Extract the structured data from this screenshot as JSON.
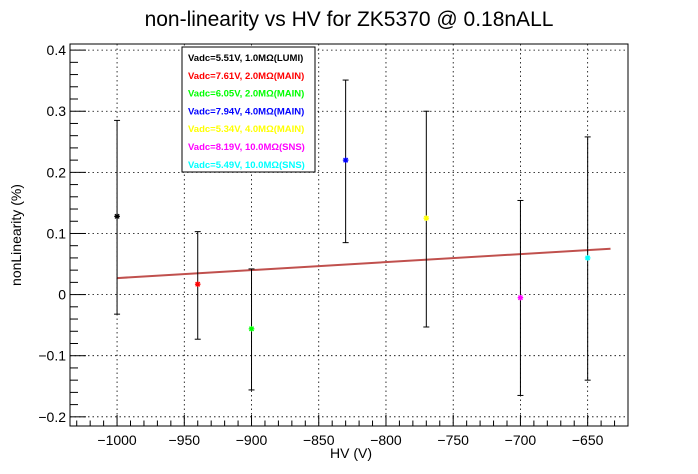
{
  "chart_data": {
    "type": "scatter",
    "title": "non-linearity vs HV for ZK5370 @ 0.18nALL",
    "xlabel": "HV (V)",
    "ylabel": "nonLinearity (%)",
    "xlim": [
      -1035,
      -620
    ],
    "ylim": [
      -0.215,
      0.41
    ],
    "grid": true,
    "legend_position": "top-left",
    "x_ticks": [
      {
        "value": -1000,
        "label": "−1000"
      },
      {
        "value": -950,
        "label": "−950"
      },
      {
        "value": -900,
        "label": "−900"
      },
      {
        "value": -850,
        "label": "−850"
      },
      {
        "value": -800,
        "label": "−800"
      },
      {
        "value": -750,
        "label": "−750"
      },
      {
        "value": -700,
        "label": "−700"
      },
      {
        "value": -650,
        "label": "−650"
      }
    ],
    "y_ticks": [
      {
        "value": -0.2,
        "label": "−0.2"
      },
      {
        "value": -0.1,
        "label": "−0.1"
      },
      {
        "value": 0,
        "label": "0"
      },
      {
        "value": 0.1,
        "label": "0.1"
      },
      {
        "value": 0.2,
        "label": "0.2"
      },
      {
        "value": 0.3,
        "label": "0.3"
      },
      {
        "value": 0.4,
        "label": "0.4"
      }
    ],
    "series": [
      {
        "name": "Vadc=5.51V, 1.0MΩ(LUMI)",
        "color": "#000000",
        "x": -1000,
        "y": 0.128,
        "err_low": 0.16,
        "err_high": 0.157
      },
      {
        "name": "Vadc=7.61V, 2.0MΩ(MAIN)",
        "color": "#ff0000",
        "x": -940,
        "y": 0.017,
        "err_low": 0.09,
        "err_high": 0.086
      },
      {
        "name": "Vadc=6.05V, 2.0MΩ(MAIN)",
        "color": "#00ff00",
        "x": -900,
        "y": -0.056,
        "err_low": 0.1,
        "err_high": 0.098
      },
      {
        "name": "Vadc=7.94V, 4.0MΩ(MAIN)",
        "color": "#0000ff",
        "x": -830,
        "y": 0.22,
        "err_low": 0.135,
        "err_high": 0.131
      },
      {
        "name": "Vadc=5.34V, 4.0MΩ(MAIN)",
        "color": "#ffff00",
        "x": -770,
        "y": 0.125,
        "err_low": 0.178,
        "err_high": 0.175
      },
      {
        "name": "Vadc=8.19V, 10.0MΩ(SNS)",
        "color": "#ff00ff",
        "x": -700,
        "y": -0.005,
        "err_low": 0.16,
        "err_high": 0.159
      },
      {
        "name": "Vadc=5.49V, 10.0MΩ(SNS)",
        "color": "#00ffff",
        "x": -650,
        "y": 0.06,
        "err_low": 0.2,
        "err_high": 0.198
      }
    ],
    "fit_line": {
      "color": "#c0504d",
      "x": [
        -1000,
        -633
      ],
      "y": [
        0.027,
        0.075
      ]
    }
  }
}
